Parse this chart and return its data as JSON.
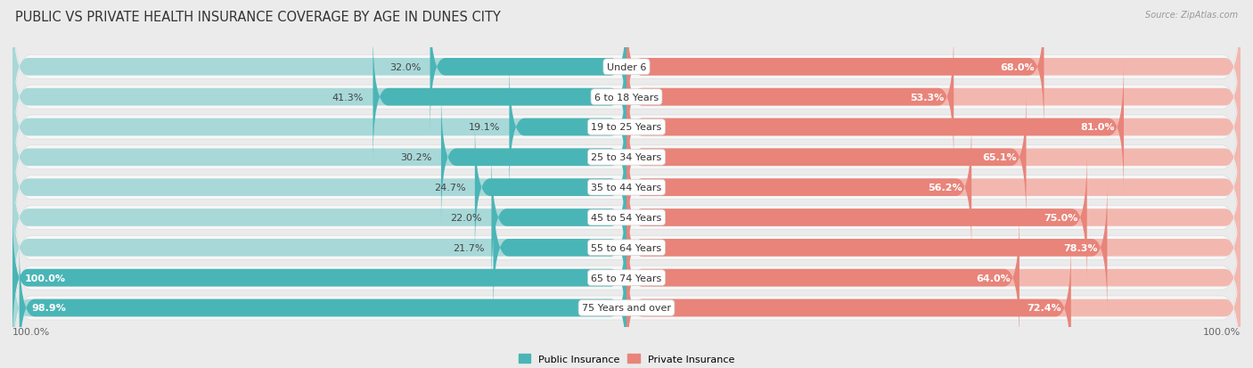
{
  "title": "PUBLIC VS PRIVATE HEALTH INSURANCE COVERAGE BY AGE IN DUNES CITY",
  "source": "Source: ZipAtlas.com",
  "categories": [
    "Under 6",
    "6 to 18 Years",
    "19 to 25 Years",
    "25 to 34 Years",
    "35 to 44 Years",
    "45 to 54 Years",
    "55 to 64 Years",
    "65 to 74 Years",
    "75 Years and over"
  ],
  "public_values": [
    32.0,
    41.3,
    19.1,
    30.2,
    24.7,
    22.0,
    21.7,
    100.0,
    98.9
  ],
  "private_values": [
    68.0,
    53.3,
    81.0,
    65.1,
    56.2,
    75.0,
    78.3,
    64.0,
    72.4
  ],
  "public_color": "#4ab5b6",
  "private_color": "#e8847a",
  "public_color_light": "#a8d8d8",
  "private_color_light": "#f2b8b0",
  "row_bg_color": "#f7f7f7",
  "row_border_color": "#dddddd",
  "background_color": "#ebebeb",
  "axis_label_left": "100.0%",
  "axis_label_right": "100.0%",
  "legend_public": "Public Insurance",
  "legend_private": "Private Insurance",
  "title_fontsize": 10.5,
  "label_fontsize": 8.0,
  "value_fontsize": 8.0,
  "category_fontsize": 8.0
}
